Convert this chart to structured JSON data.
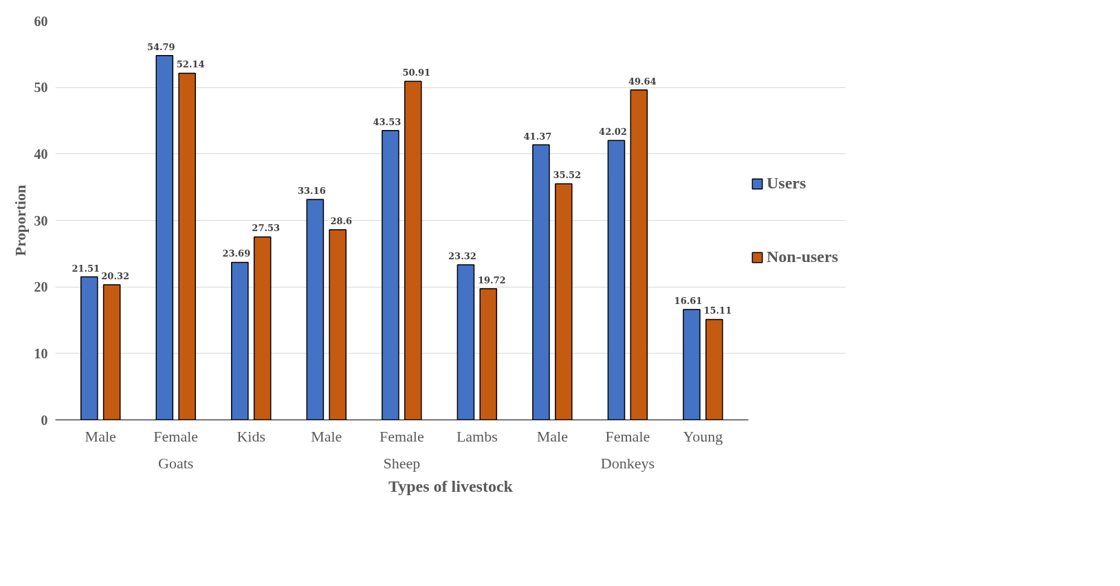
{
  "chart_data": {
    "type": "bar",
    "xlabel": "Types of livestock",
    "ylabel": "Proportion",
    "categories": [
      "Male",
      "Female",
      "Kids",
      "Male",
      "Female",
      "Lambs",
      "Male",
      "Female",
      "Young"
    ],
    "series": [
      {
        "name": "Users",
        "color": "#4472c4",
        "values": [
          21.51,
          54.79,
          23.69,
          33.16,
          43.53,
          23.32,
          41.37,
          42.02,
          16.61
        ]
      },
      {
        "name": "Non-users",
        "color": "#c55a11",
        "values": [
          20.32,
          52.14,
          27.53,
          28.6,
          50.91,
          19.72,
          35.52,
          49.64,
          15.11
        ]
      }
    ],
    "annotations": [
      "Goats",
      "Sheep",
      "Donkeys"
    ],
    "ylim": [
      0,
      60
    ],
    "yticks": [
      0,
      10,
      20,
      30,
      40,
      50,
      60
    ],
    "grid": "y",
    "legend": "right",
    "data_labels": true
  }
}
